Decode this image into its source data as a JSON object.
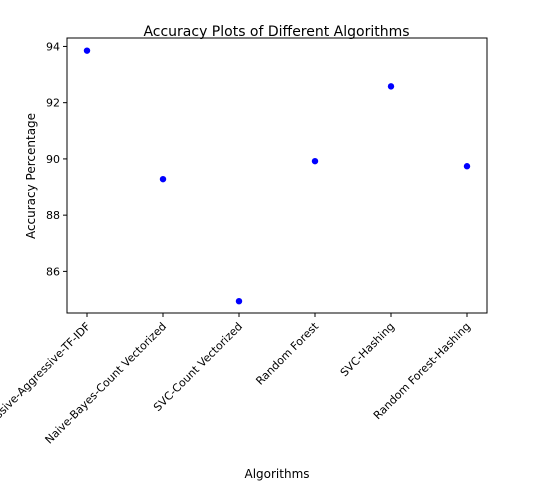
{
  "chart_data": {
    "type": "scatter",
    "title": "Accuracy Plots of Different Algorithms",
    "xlabel": "Algorithms",
    "ylabel": "Accuracy Percentage",
    "categories": [
      "Passive-Aggressive-TF-IDF",
      "Naive-Bayes-Count Vectorized",
      "SVC-Count Vectorized",
      "Random Forest",
      "SVC-Hashing",
      "Random Forest-Hashing"
    ],
    "values": [
      93.85,
      89.28,
      84.94,
      89.92,
      92.58,
      89.74
    ],
    "ylim": [
      84.52,
      94.3
    ],
    "yticks": [
      86,
      88,
      90,
      92,
      94
    ],
    "point_color": "#0000ff",
    "grid": false,
    "legend": "none"
  }
}
